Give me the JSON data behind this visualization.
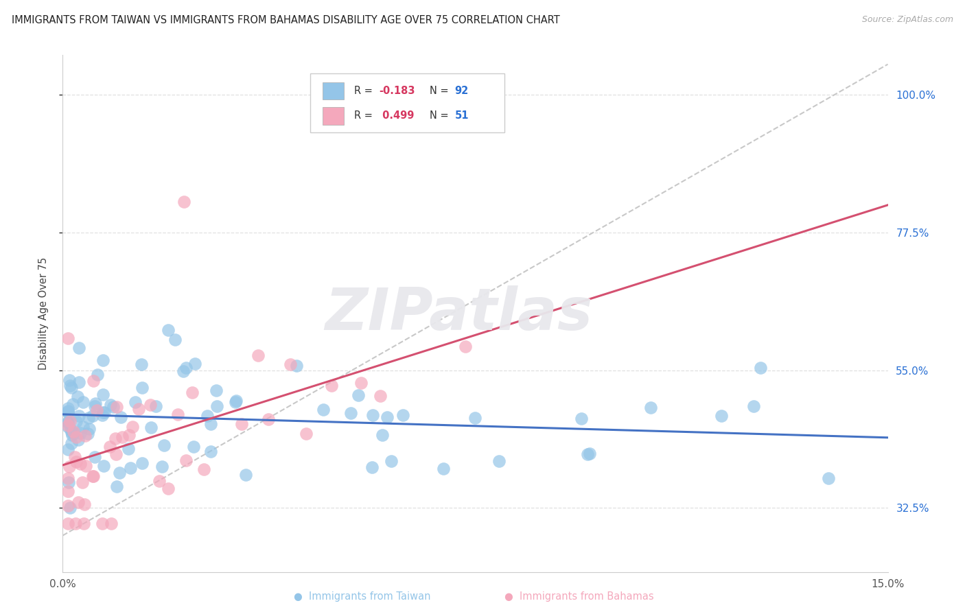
{
  "title": "IMMIGRANTS FROM TAIWAN VS IMMIGRANTS FROM BAHAMAS DISABILITY AGE OVER 75 CORRELATION CHART",
  "source": "Source: ZipAtlas.com",
  "ylabel": "Disability Age Over 75",
  "xmin": 0.0,
  "xmax": 0.15,
  "ymin": 0.22,
  "ymax": 1.065,
  "ytick_vals": [
    0.325,
    0.55,
    0.775,
    1.0
  ],
  "ytick_labels": [
    "32.5%",
    "55.0%",
    "77.5%",
    "100.0%"
  ],
  "xtick_vals": [
    0.0,
    0.15
  ],
  "xtick_labels": [
    "0.0%",
    "15.0%"
  ],
  "taiwan_color": "#94C5E8",
  "bahamas_color": "#F4A8BC",
  "taiwan_R": -0.183,
  "taiwan_N": 92,
  "bahamas_R": 0.499,
  "bahamas_N": 51,
  "R_color": "#D63860",
  "N_color": "#2A70D4",
  "right_tick_color": "#2A70D4",
  "grid_color": "#e0e0e0",
  "background_color": "#ffffff",
  "watermark": "ZIPatlas",
  "taiwan_line_color": "#4472C4",
  "bahamas_line_color": "#D45070",
  "taiwan_line_x": [
    0.0,
    0.15
  ],
  "taiwan_line_y": [
    0.478,
    0.44
  ],
  "bahamas_line_x": [
    0.0,
    0.15
  ],
  "bahamas_line_y": [
    0.395,
    0.82
  ],
  "diag_line_x": [
    0.0,
    0.15
  ],
  "diag_line_y": [
    0.28,
    1.05
  ]
}
